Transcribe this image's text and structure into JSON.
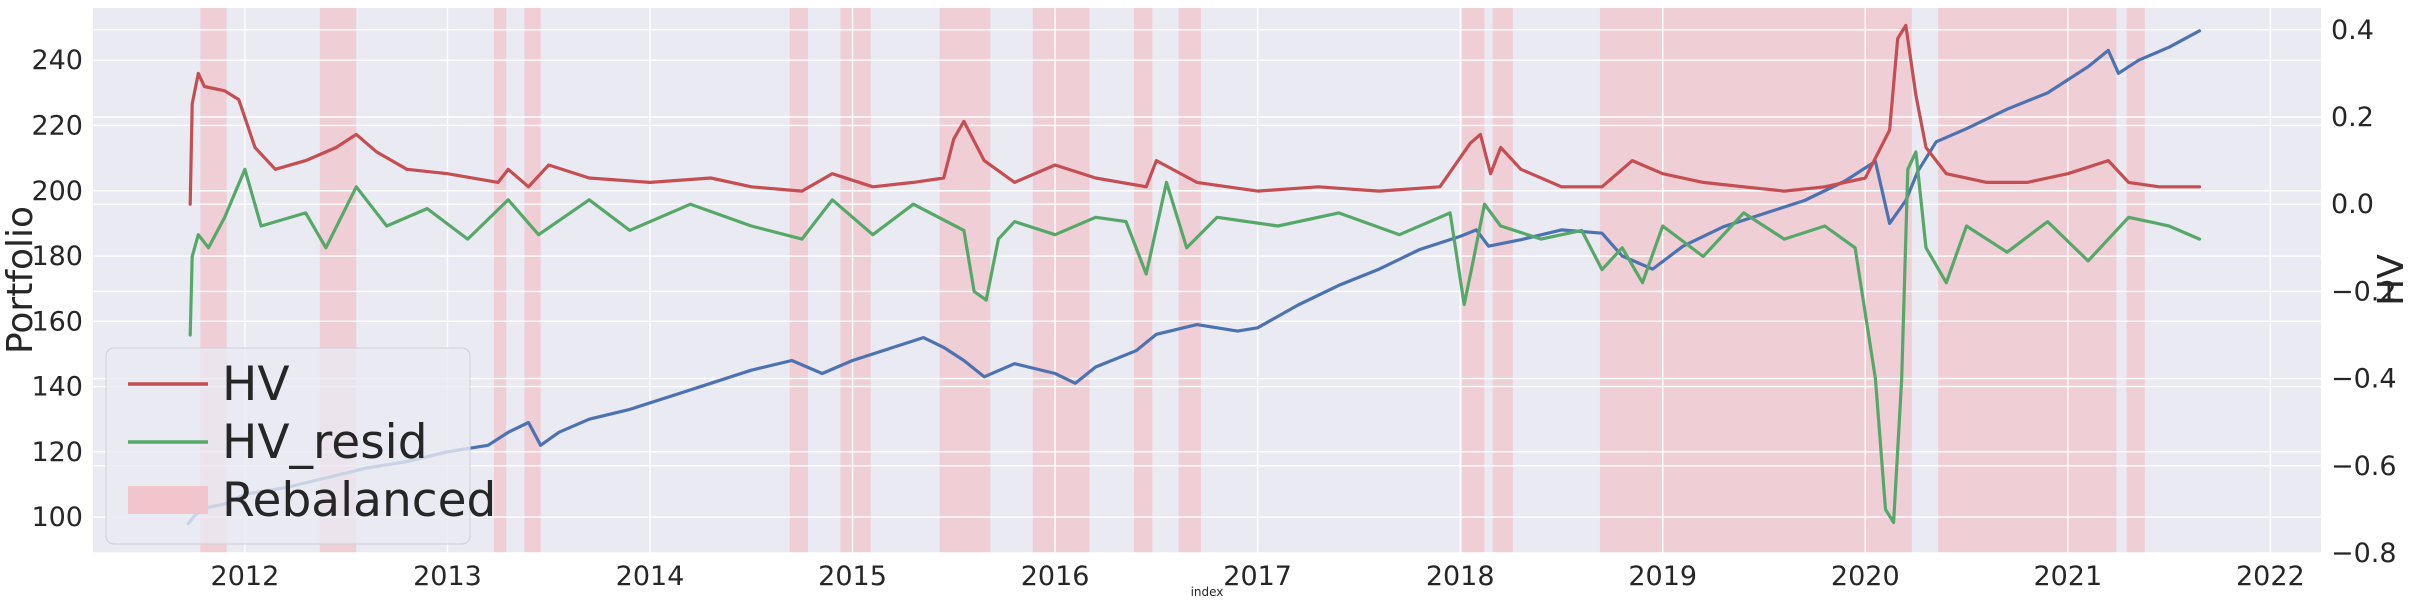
{
  "chart_data": {
    "type": "line",
    "title": "",
    "xlabel": "index",
    "ylabel_left": "Portfolio",
    "ylabel_right": "HV",
    "xlim": [
      2011.25,
      2022.25
    ],
    "ylim_left": [
      89,
      256
    ],
    "ylim_right": [
      -0.8,
      0.45
    ],
    "x_ticks": [
      "2012",
      "2013",
      "2014",
      "2015",
      "2016",
      "2017",
      "2018",
      "2019",
      "2020",
      "2021",
      "2022"
    ],
    "y_ticks_left": [
      "100",
      "120",
      "140",
      "160",
      "180",
      "200",
      "220",
      "240"
    ],
    "y_ticks_right": [
      "−0.8",
      "−0.6",
      "−0.4",
      "−0.2",
      "0.0",
      "0.2",
      "0.4"
    ],
    "grid": true,
    "legend": {
      "placement": "lower-left",
      "entries": [
        {
          "label": "HV",
          "color": "#c44e52",
          "kind": "line"
        },
        {
          "label": "HV_resid",
          "color": "#55a868",
          "kind": "line"
        },
        {
          "label": "Rebalanced",
          "color": "#f2c4cc",
          "kind": "patch"
        }
      ]
    },
    "rebalanced_periods": [
      [
        2011.78,
        2011.91
      ],
      [
        2012.37,
        2012.55
      ],
      [
        2013.23,
        2013.29
      ],
      [
        2013.38,
        2013.46
      ],
      [
        2014.69,
        2014.78
      ],
      [
        2014.94,
        2015.09
      ],
      [
        2015.43,
        2015.68
      ],
      [
        2015.89,
        2016.17
      ],
      [
        2016.39,
        2016.48
      ],
      [
        2016.61,
        2016.72
      ],
      [
        2018.01,
        2018.12
      ],
      [
        2018.16,
        2018.26
      ],
      [
        2018.69,
        2020.23
      ],
      [
        2020.36,
        2021.24
      ],
      [
        2021.29,
        2021.38
      ]
    ],
    "series": [
      {
        "name": "Portfolio",
        "axis": "left",
        "color": "#4c72b0",
        "x": [
          2011.72,
          2011.76,
          2011.82,
          2011.9,
          2012.0,
          2012.2,
          2012.4,
          2012.6,
          2012.8,
          2013.0,
          2013.2,
          2013.3,
          2013.4,
          2013.46,
          2013.55,
          2013.7,
          2013.9,
          2014.1,
          2014.3,
          2014.5,
          2014.7,
          2014.85,
          2015.0,
          2015.2,
          2015.35,
          2015.45,
          2015.55,
          2015.65,
          2015.8,
          2016.0,
          2016.1,
          2016.2,
          2016.4,
          2016.5,
          2016.7,
          2016.9,
          2017.0,
          2017.2,
          2017.4,
          2017.6,
          2017.8,
          2018.0,
          2018.08,
          2018.14,
          2018.3,
          2018.5,
          2018.7,
          2018.8,
          2018.95,
          2019.1,
          2019.3,
          2019.5,
          2019.7,
          2019.9,
          2020.05,
          2020.12,
          2020.2,
          2020.26,
          2020.35,
          2020.5,
          2020.7,
          2020.9,
          2021.1,
          2021.2,
          2021.25,
          2021.35,
          2021.5,
          2021.65
        ],
        "y": [
          98,
          101,
          103,
          104,
          107,
          109,
          112,
          115,
          117,
          120,
          122,
          126,
          129,
          122,
          126,
          130,
          133,
          137,
          141,
          145,
          148,
          144,
          148,
          152,
          155,
          152,
          148,
          143,
          147,
          144,
          141,
          146,
          151,
          156,
          159,
          157,
          158,
          165,
          171,
          176,
          182,
          186,
          188,
          183,
          185,
          188,
          187,
          180,
          176,
          183,
          189,
          193,
          197,
          203,
          209,
          190,
          197,
          206,
          215,
          219,
          225,
          230,
          238,
          243,
          236,
          240,
          244,
          249
        ]
      },
      {
        "name": "HV",
        "axis": "right",
        "color": "#c44e52",
        "x": [
          2011.73,
          2011.74,
          2011.77,
          2011.8,
          2011.9,
          2011.97,
          2012.05,
          2012.15,
          2012.3,
          2012.45,
          2012.55,
          2012.65,
          2012.8,
          2013.0,
          2013.25,
          2013.3,
          2013.4,
          2013.5,
          2013.7,
          2014.0,
          2014.3,
          2014.5,
          2014.75,
          2014.9,
          2015.1,
          2015.3,
          2015.45,
          2015.5,
          2015.55,
          2015.65,
          2015.8,
          2016.0,
          2016.2,
          2016.45,
          2016.5,
          2016.7,
          2017.0,
          2017.3,
          2017.6,
          2017.9,
          2018.05,
          2018.1,
          2018.15,
          2018.2,
          2018.3,
          2018.5,
          2018.7,
          2018.85,
          2019.0,
          2019.2,
          2019.4,
          2019.6,
          2019.8,
          2020.0,
          2020.12,
          2020.16,
          2020.2,
          2020.25,
          2020.3,
          2020.4,
          2020.6,
          2020.8,
          2021.0,
          2021.2,
          2021.3,
          2021.45,
          2021.65
        ],
        "y": [
          0.0,
          0.23,
          0.3,
          0.27,
          0.26,
          0.24,
          0.13,
          0.08,
          0.1,
          0.13,
          0.16,
          0.12,
          0.08,
          0.07,
          0.05,
          0.08,
          0.04,
          0.09,
          0.06,
          0.05,
          0.06,
          0.04,
          0.03,
          0.07,
          0.04,
          0.05,
          0.06,
          0.15,
          0.19,
          0.1,
          0.05,
          0.09,
          0.06,
          0.04,
          0.1,
          0.05,
          0.03,
          0.04,
          0.03,
          0.04,
          0.14,
          0.16,
          0.07,
          0.13,
          0.08,
          0.04,
          0.04,
          0.1,
          0.07,
          0.05,
          0.04,
          0.03,
          0.04,
          0.06,
          0.17,
          0.38,
          0.41,
          0.25,
          0.13,
          0.07,
          0.05,
          0.05,
          0.07,
          0.1,
          0.05,
          0.04,
          0.04
        ]
      },
      {
        "name": "HV_resid",
        "axis": "right",
        "color": "#55a868",
        "x": [
          2011.73,
          2011.74,
          2011.77,
          2011.82,
          2011.9,
          2012.0,
          2012.08,
          2012.3,
          2012.4,
          2012.55,
          2012.7,
          2012.9,
          2013.1,
          2013.3,
          2013.45,
          2013.7,
          2013.9,
          2014.2,
          2014.5,
          2014.75,
          2014.9,
          2015.1,
          2015.3,
          2015.55,
          2015.6,
          2015.66,
          2015.72,
          2015.8,
          2016.0,
          2016.2,
          2016.35,
          2016.45,
          2016.55,
          2016.65,
          2016.8,
          2017.1,
          2017.4,
          2017.7,
          2017.95,
          2018.02,
          2018.06,
          2018.12,
          2018.2,
          2018.4,
          2018.6,
          2018.7,
          2018.8,
          2018.9,
          2019.0,
          2019.2,
          2019.4,
          2019.6,
          2019.8,
          2019.95,
          2020.05,
          2020.1,
          2020.14,
          2020.18,
          2020.21,
          2020.25,
          2020.3,
          2020.4,
          2020.5,
          2020.7,
          2020.9,
          2021.1,
          2021.3,
          2021.5,
          2021.65
        ],
        "y": [
          -0.3,
          -0.12,
          -0.07,
          -0.1,
          -0.03,
          0.08,
          -0.05,
          -0.02,
          -0.1,
          0.04,
          -0.05,
          -0.01,
          -0.08,
          0.01,
          -0.07,
          0.01,
          -0.06,
          0.0,
          -0.05,
          -0.08,
          0.01,
          -0.07,
          0.0,
          -0.06,
          -0.2,
          -0.22,
          -0.08,
          -0.04,
          -0.07,
          -0.03,
          -0.04,
          -0.16,
          0.05,
          -0.1,
          -0.03,
          -0.05,
          -0.02,
          -0.07,
          -0.02,
          -0.23,
          -0.14,
          0.0,
          -0.05,
          -0.08,
          -0.06,
          -0.15,
          -0.1,
          -0.18,
          -0.05,
          -0.12,
          -0.02,
          -0.08,
          -0.05,
          -0.1,
          -0.4,
          -0.7,
          -0.73,
          -0.4,
          0.08,
          0.12,
          -0.1,
          -0.18,
          -0.05,
          -0.11,
          -0.04,
          -0.13,
          -0.03,
          -0.05,
          -0.08
        ]
      }
    ]
  }
}
